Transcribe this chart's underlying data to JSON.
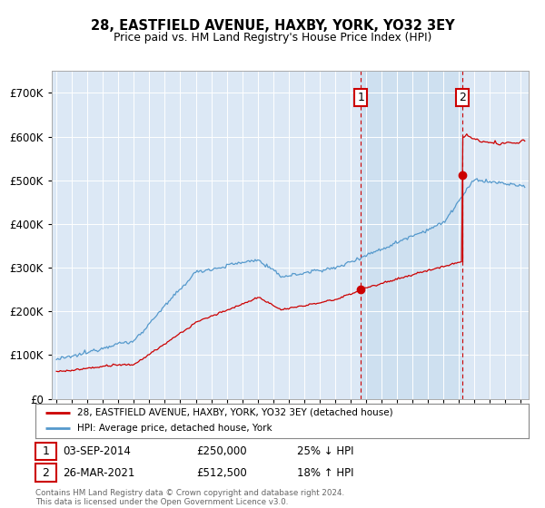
{
  "title": "28, EASTFIELD AVENUE, HAXBY, YORK, YO32 3EY",
  "subtitle": "Price paid vs. HM Land Registry's House Price Index (HPI)",
  "legend_label_red": "28, EASTFIELD AVENUE, HAXBY, YORK, YO32 3EY (detached house)",
  "legend_label_blue": "HPI: Average price, detached house, York",
  "annotation1": {
    "label": "1",
    "date": "03-SEP-2014",
    "price": "£250,000",
    "pct": "25% ↓ HPI",
    "year": 2014.67,
    "value": 250000
  },
  "annotation2": {
    "label": "2",
    "date": "26-MAR-2021",
    "price": "£512,500",
    "pct": "18% ↑ HPI",
    "year": 2021.23,
    "value": 512500
  },
  "footer": "Contains HM Land Registry data © Crown copyright and database right 2024.\nThis data is licensed under the Open Government Licence v3.0.",
  "plot_bg": "#dce8f5",
  "shade_bg": "#ccddf0",
  "fig_bg": "#ffffff",
  "red_color": "#cc0000",
  "blue_color": "#5599cc",
  "ylim": [
    0,
    750000
  ],
  "xlim_start": 1994.7,
  "xlim_end": 2025.5
}
